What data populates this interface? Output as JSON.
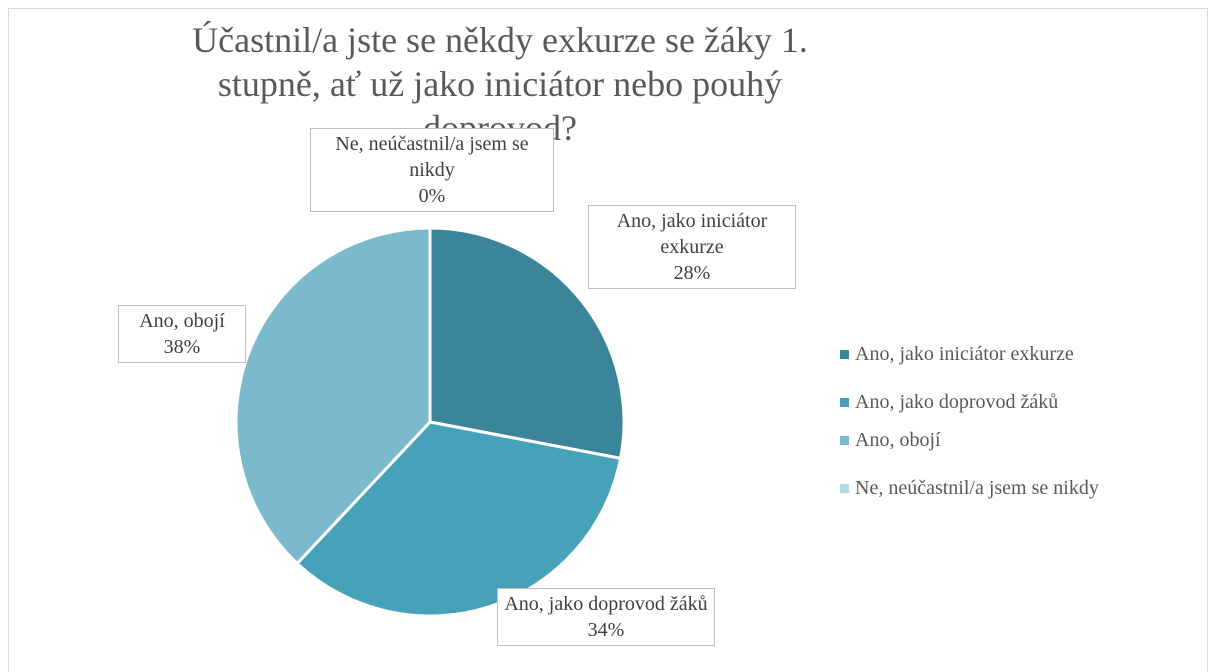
{
  "chart_data": {
    "type": "pie",
    "title": "Účastnil/a jste se někdy exkurze se žáky 1. stupně, ať už jako iniciátor nebo pouhý doprovod?",
    "categories": [
      "Ano, jako iniciátor exkurze",
      "Ano, jako doprovod žáků",
      "Ano, obojí",
      "Ne, neúčastnil/a jsem se nikdy"
    ],
    "values": [
      28,
      34,
      38,
      0
    ],
    "value_labels": [
      "28%",
      "34%",
      "38%",
      "0%"
    ],
    "colors": [
      "#3a8599",
      "#46a1b9",
      "#7bb9cd",
      "#b3d8e6"
    ],
    "legend": "right"
  }
}
